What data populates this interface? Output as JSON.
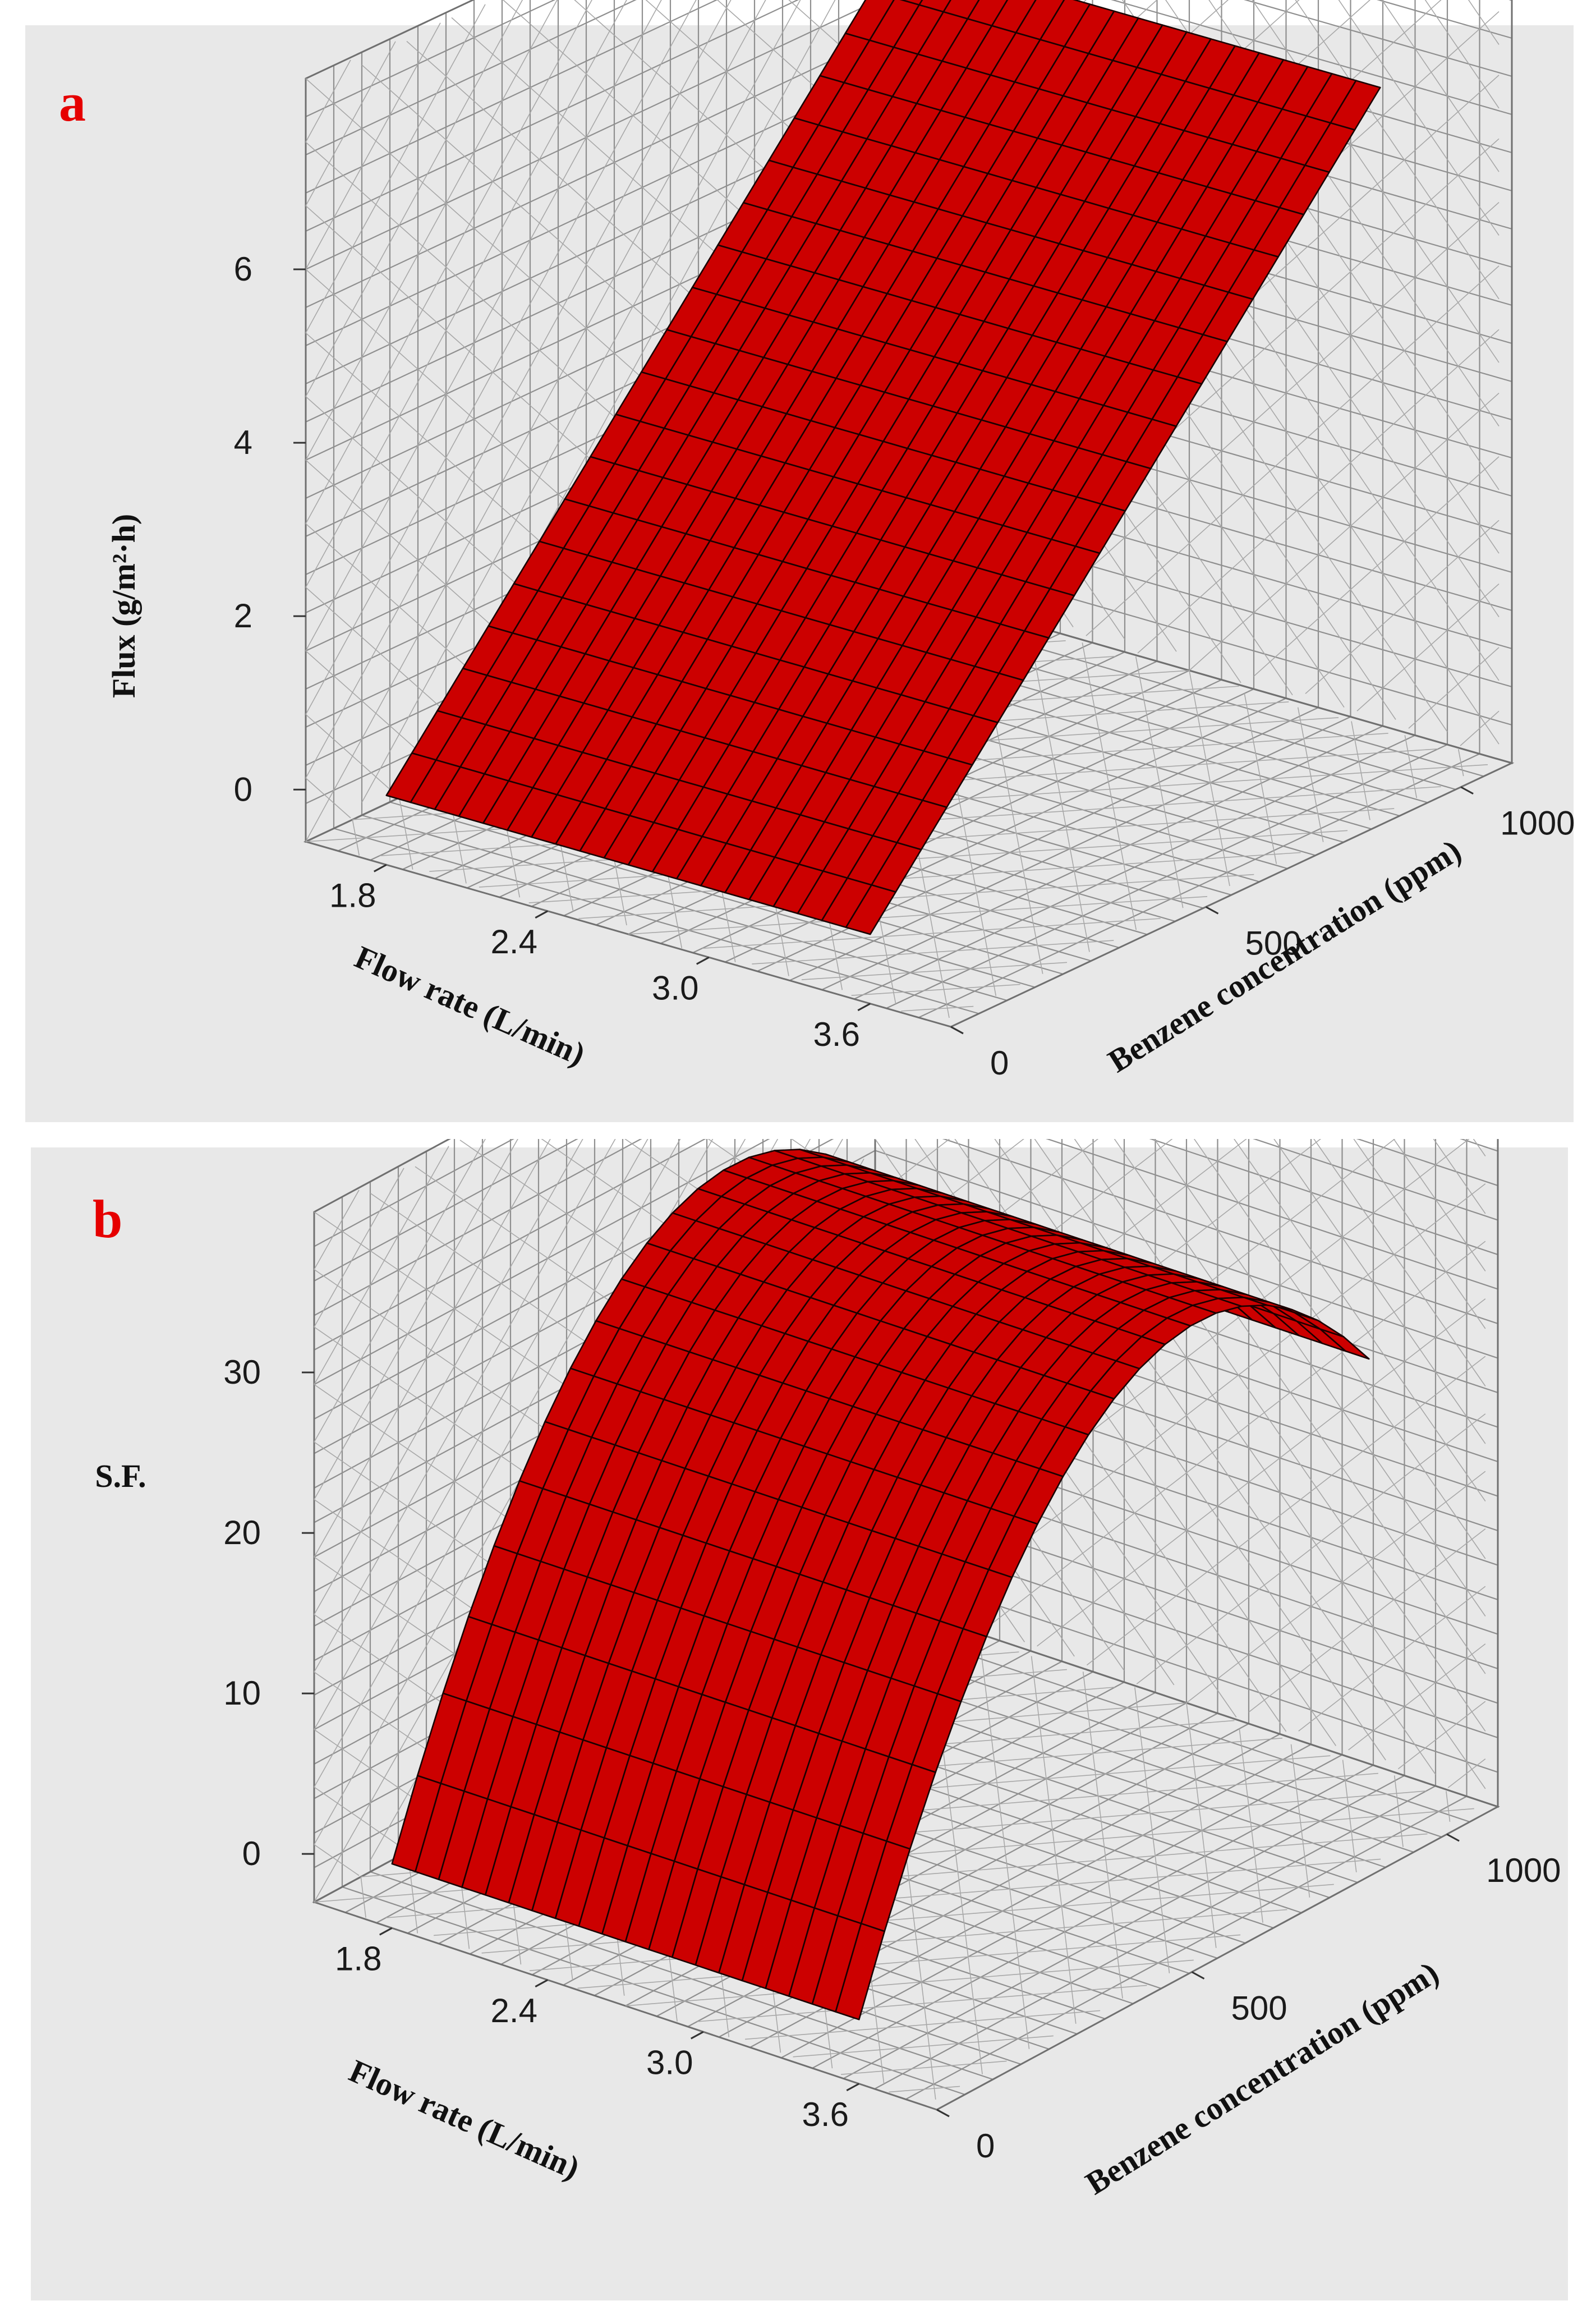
{
  "chart_data": [
    {
      "type": "surface",
      "panel_label": "a",
      "zlabel": "Flux (g/m²·h)",
      "xlabel": "Flow rate (L/min)",
      "ylabel": "Benzene concentration (ppm)",
      "x_ticks": [
        "1.8",
        "2.4",
        "3.0",
        "3.6"
      ],
      "y_ticks": [
        "0",
        "500",
        "1000"
      ],
      "z_ticks": [
        "0",
        "2",
        "4",
        "6"
      ],
      "xlim": [
        1.5,
        3.9
      ],
      "ylim": [
        0,
        1100
      ],
      "zlim": [
        -0.6,
        8.2
      ],
      "x_range": [
        1.8,
        3.6
      ],
      "y_range": [
        0,
        1000
      ],
      "surface": {
        "model": "linear",
        "z_at_min_conc": 0.2,
        "z_at_max_conc": 7.2
      },
      "grid": 20,
      "colors": {
        "surface": "#cc0000",
        "mesh": "#1a0000",
        "label": "#e60000",
        "background": "#e8e8e8"
      }
    },
    {
      "type": "surface",
      "panel_label": "b",
      "zlabel": "S.F.",
      "xlabel": "Flow rate (L/min)",
      "ylabel": "Benzene concentration (ppm)",
      "x_ticks": [
        "1.8",
        "2.4",
        "3.0",
        "3.6"
      ],
      "y_ticks": [
        "0",
        "500",
        "1000"
      ],
      "z_ticks": [
        "0",
        "10",
        "20",
        "30"
      ],
      "xlim": [
        1.5,
        3.9
      ],
      "ylim": [
        0,
        1100
      ],
      "zlim": [
        -3,
        40
      ],
      "x_range": [
        1.8,
        3.6
      ],
      "y_range": [
        0,
        1000
      ],
      "surface": {
        "model": "quadratic",
        "z_at_min_conc": 1,
        "z_at_max_conc": 25,
        "z_peak": 33,
        "peak_conc": 700
      },
      "grid": 20,
      "colors": {
        "surface": "#cc0000",
        "mesh": "#1a0000",
        "label": "#e60000",
        "background": "#e8e8e8"
      }
    }
  ]
}
